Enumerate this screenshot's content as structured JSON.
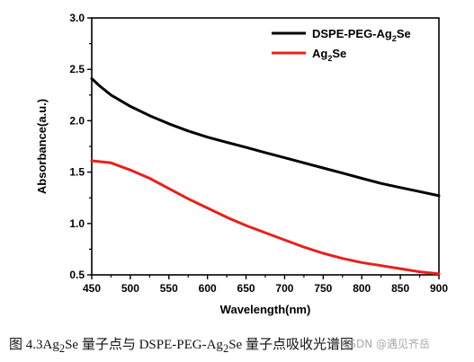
{
  "chart_data": {
    "type": "line",
    "title": "",
    "xlabel": "Wavelength(nm)",
    "ylabel": "Absorbance(a.u.)",
    "xlim": [
      450,
      900
    ],
    "ylim": [
      0.5,
      3.0
    ],
    "x_ticks": [
      "450",
      "500",
      "550",
      "600",
      "650",
      "700",
      "750",
      "800",
      "850",
      "900"
    ],
    "y_ticks": [
      "0.5",
      "1.0",
      "1.5",
      "2.0",
      "2.5",
      "3.0"
    ],
    "legend_position": "top-right",
    "series": [
      {
        "name": "DSPE-PEG-Ag2Se",
        "name_main": "DSPE-PEG-Ag",
        "name_sub": "2",
        "name_tail": "Se",
        "color": "#000000",
        "x": [
          450,
          460,
          475,
          500,
          525,
          550,
          575,
          600,
          625,
          650,
          675,
          700,
          725,
          750,
          775,
          800,
          825,
          850,
          875,
          900
        ],
        "y": [
          2.41,
          2.34,
          2.25,
          2.14,
          2.05,
          1.97,
          1.9,
          1.84,
          1.79,
          1.74,
          1.69,
          1.64,
          1.59,
          1.54,
          1.49,
          1.44,
          1.39,
          1.35,
          1.31,
          1.27
        ]
      },
      {
        "name": "Ag2Se",
        "name_main": "Ag",
        "name_sub": "2",
        "name_tail": "Se",
        "color": "#e8201c",
        "x": [
          450,
          475,
          500,
          525,
          550,
          575,
          600,
          625,
          650,
          675,
          700,
          725,
          750,
          775,
          800,
          825,
          850,
          875,
          900
        ],
        "y": [
          1.61,
          1.59,
          1.52,
          1.44,
          1.34,
          1.24,
          1.15,
          1.06,
          0.98,
          0.91,
          0.84,
          0.77,
          0.71,
          0.66,
          0.62,
          0.59,
          0.56,
          0.53,
          0.51
        ]
      }
    ]
  },
  "caption": {
    "prefix": "图 4.3Ag",
    "sub1": "2",
    "mid": "Se 量子点与 DSPE-PEG-Ag",
    "sub2": "2",
    "suffix": "Se 量子点吸收光谱图"
  },
  "watermark": "CSDN @遇见齐岳"
}
